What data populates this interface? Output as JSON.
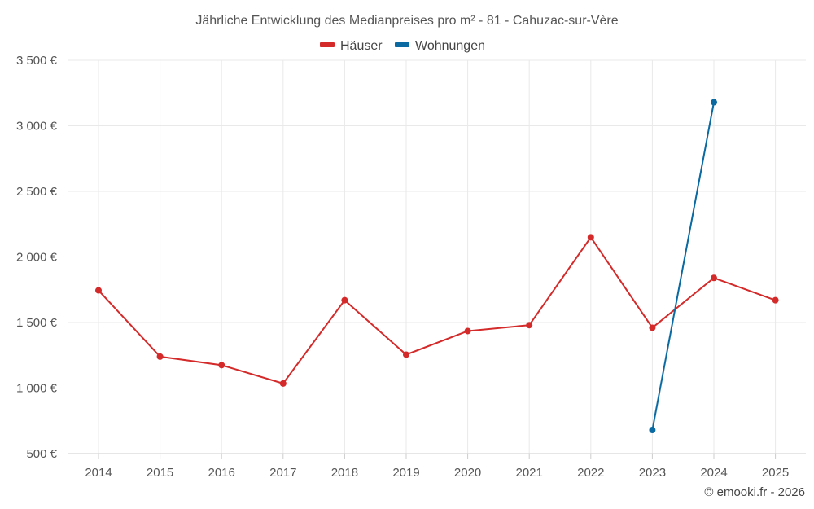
{
  "chart_data": {
    "type": "line",
    "title": "Jährliche Entwicklung des Medianpreises pro m² - 81 - Cahuzac-sur-Vère",
    "x": [
      "2014",
      "2015",
      "2016",
      "2017",
      "2018",
      "2019",
      "2020",
      "2021",
      "2022",
      "2023",
      "2024",
      "2025"
    ],
    "series": [
      {
        "name": "Häuser",
        "color": "#d42a2a",
        "values": [
          1745,
          1240,
          1175,
          1035,
          1670,
          1255,
          1435,
          1480,
          2150,
          1460,
          1840,
          1670
        ]
      },
      {
        "name": "Wohnungen",
        "color": "#0a6aa1",
        "values": [
          null,
          null,
          null,
          null,
          null,
          null,
          null,
          null,
          null,
          680,
          3180,
          null
        ]
      }
    ],
    "ylim": [
      500,
      3500
    ],
    "yticks": [
      500,
      1000,
      1500,
      2000,
      2500,
      3000,
      3500
    ],
    "ytick_labels": [
      "500 €",
      "1 000 €",
      "1 500 €",
      "2 000 €",
      "2 500 €",
      "3 000 €",
      "3 500 €"
    ],
    "grid": true,
    "legend_position": "top-center"
  },
  "credit": "© emooki.fr - 2026"
}
